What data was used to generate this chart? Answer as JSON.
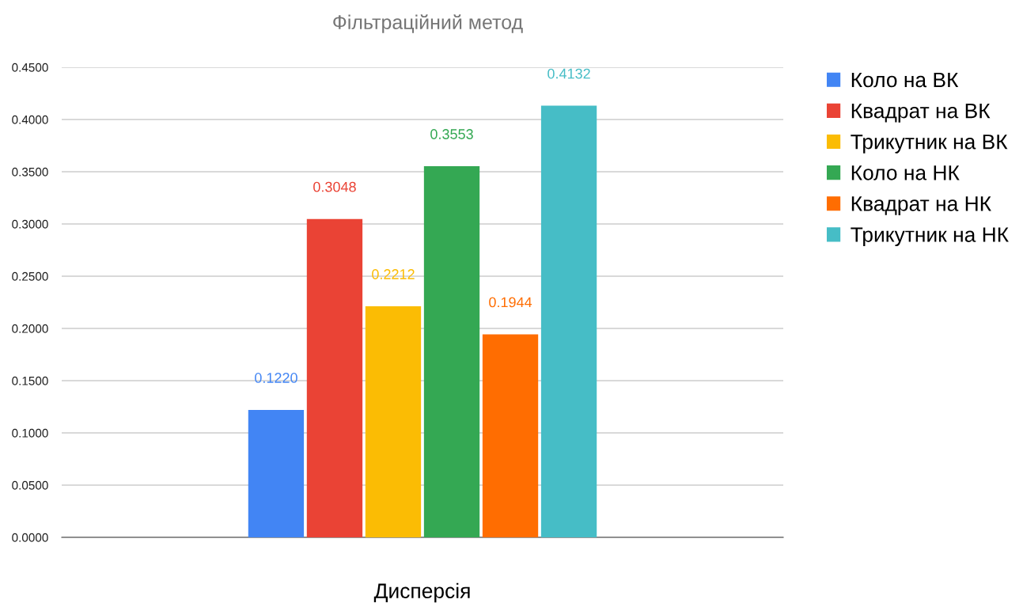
{
  "chart_data": {
    "type": "bar",
    "title": "Фільтраційний метод",
    "xlabel": "Дисперсія",
    "categories": [
      null
    ],
    "series": [
      {
        "name": "Коло на ВК",
        "color": "#4285f4",
        "values": [
          0.122
        ],
        "value_labels": [
          "0.1220"
        ]
      },
      {
        "name": "Квадрат на ВК",
        "color": "#ea4335",
        "values": [
          0.3048
        ],
        "value_labels": [
          "0.3048"
        ]
      },
      {
        "name": "Трикутник на ВК",
        "color": "#fbbc04",
        "values": [
          0.2212
        ],
        "value_labels": [
          "0.2212"
        ]
      },
      {
        "name": "Коло на НК",
        "color": "#34a853",
        "values": [
          0.3553
        ],
        "value_labels": [
          "0.3553"
        ]
      },
      {
        "name": "Квадрат на НК",
        "color": "#ff6d01",
        "values": [
          0.1944
        ],
        "value_labels": [
          "0.1944"
        ]
      },
      {
        "name": "Трикутник на НК",
        "color": "#46bdc6",
        "values": [
          0.4132
        ],
        "value_labels": [
          "0.4132"
        ]
      }
    ],
    "ylim": [
      0,
      0.45
    ],
    "yticks": [
      {
        "value": 0,
        "label": "0.0000"
      },
      {
        "value": 0.05,
        "label": "0.0500"
      },
      {
        "value": 0.1,
        "label": "0.1000"
      },
      {
        "value": 0.15,
        "label": "0.1500"
      },
      {
        "value": 0.2,
        "label": "0.2000"
      },
      {
        "value": 0.25,
        "label": "0.2500"
      },
      {
        "value": 0.3,
        "label": "0.3000"
      },
      {
        "value": 0.35,
        "label": "0.3500"
      },
      {
        "value": 0.4,
        "label": "0.4000"
      },
      {
        "value": 0.45,
        "label": "0.4500"
      }
    ],
    "grid": "y",
    "legend": "right"
  }
}
